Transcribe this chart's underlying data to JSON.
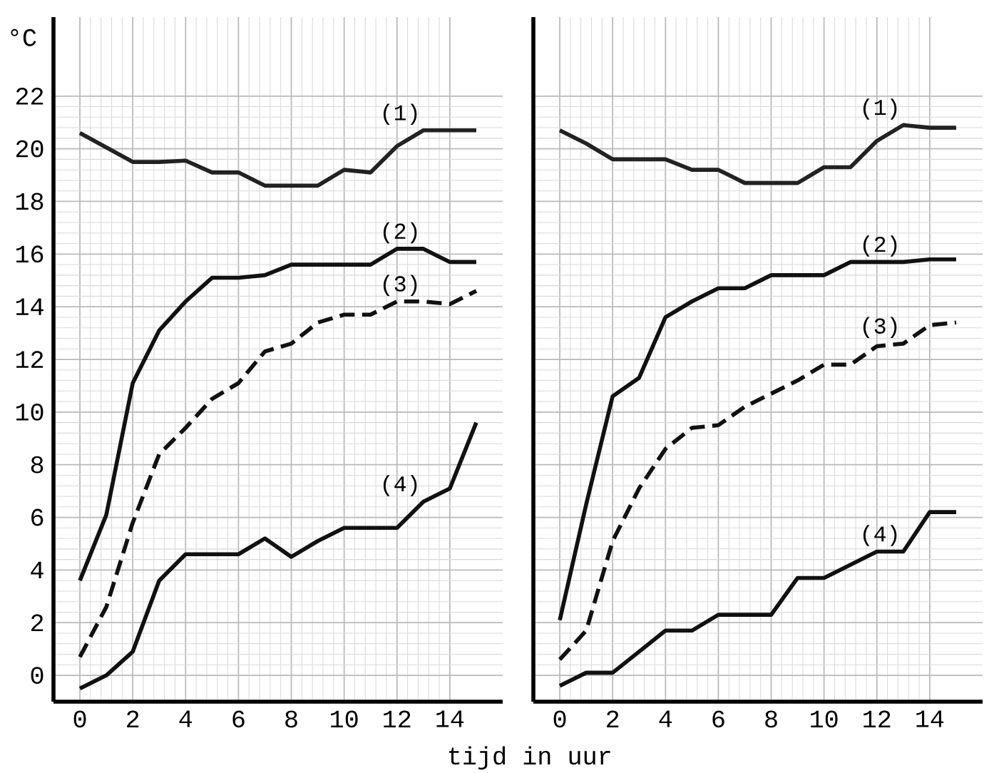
{
  "chart_data": [
    {
      "type": "line",
      "ylabel": "°C",
      "xlabel": "tijd in uur",
      "x": [
        0,
        1,
        2,
        3,
        4,
        5,
        6,
        7,
        8,
        9,
        10,
        11,
        12,
        13,
        14,
        15
      ],
      "xlim": [
        -1,
        16
      ],
      "ylim": [
        -1,
        25
      ],
      "xticks": [
        0,
        2,
        4,
        6,
        8,
        10,
        12,
        14
      ],
      "yticks": [
        0,
        2,
        4,
        6,
        8,
        10,
        12,
        14,
        16,
        18,
        20,
        22
      ],
      "grid": true,
      "marker": "none",
      "series": [
        {
          "name": "(1)",
          "color": "#222222",
          "line_style": "solid",
          "values": [
            20.6,
            20.05,
            19.5,
            19.5,
            19.55,
            19.1,
            19.1,
            18.6,
            18.6,
            18.6,
            19.2,
            19.1,
            20.1,
            20.7,
            20.7,
            20.7
          ]
        },
        {
          "name": "(2)",
          "color": "#111111",
          "line_style": "solid",
          "values": [
            3.6,
            6.1,
            11.1,
            13.1,
            14.2,
            15.1,
            15.1,
            15.2,
            15.6,
            15.6,
            15.6,
            15.6,
            16.2,
            16.2,
            15.7,
            15.7
          ]
        },
        {
          "name": "(3)",
          "color": "#111111",
          "line_style": "dashed",
          "values": [
            0.7,
            2.6,
            5.8,
            8.4,
            9.4,
            10.5,
            11.1,
            12.3,
            12.6,
            13.4,
            13.7,
            13.7,
            14.2,
            14.2,
            14.1,
            14.6
          ]
        },
        {
          "name": "(4)",
          "color": "#111111",
          "line_style": "solid",
          "values": [
            -0.5,
            0,
            0.9,
            3.6,
            4.6,
            4.6,
            4.6,
            5.2,
            4.5,
            5.1,
            5.6,
            5.6,
            5.6,
            6.6,
            7.1,
            9.6
          ]
        }
      ]
    },
    {
      "type": "line",
      "x": [
        0,
        1,
        2,
        3,
        4,
        5,
        6,
        7,
        8,
        9,
        10,
        11,
        12,
        13,
        14,
        15
      ],
      "xlim": [
        -1,
        16
      ],
      "ylim": [
        -1,
        25
      ],
      "xticks": [
        0,
        2,
        4,
        6,
        8,
        10,
        12,
        14
      ],
      "yticks": [
        0,
        2,
        4,
        6,
        8,
        10,
        12,
        14,
        16,
        18,
        20,
        22
      ],
      "tick_labels": "x",
      "grid": true,
      "marker": "none",
      "series": [
        {
          "name": "(1)",
          "color": "#222222",
          "line_style": "solid",
          "values": [
            20.7,
            20.2,
            19.6,
            19.6,
            19.6,
            19.2,
            19.2,
            18.7,
            18.7,
            18.7,
            19.3,
            19.3,
            20.3,
            20.9,
            20.8,
            20.8
          ]
        },
        {
          "name": "(2)",
          "color": "#111111",
          "line_style": "solid",
          "values": [
            2.1,
            6.5,
            10.6,
            11.3,
            13.6,
            14.2,
            14.7,
            14.7,
            15.2,
            15.2,
            15.2,
            15.7,
            15.7,
            15.7,
            15.8,
            15.8
          ]
        },
        {
          "name": "(3)",
          "color": "#111111",
          "line_style": "dashed",
          "values": [
            0.6,
            1.7,
            5.1,
            7.1,
            8.6,
            9.4,
            9.5,
            10.2,
            10.7,
            11.2,
            11.8,
            11.8,
            12.5,
            12.6,
            13.3,
            13.4
          ]
        },
        {
          "name": "(4)",
          "color": "#111111",
          "line_style": "solid",
          "values": [
            -0.4,
            0.1,
            0.1,
            0.9,
            1.7,
            1.7,
            2.3,
            2.3,
            2.3,
            3.7,
            3.7,
            4.2,
            4.7,
            4.7,
            6.2,
            6.2
          ]
        }
      ]
    }
  ]
}
